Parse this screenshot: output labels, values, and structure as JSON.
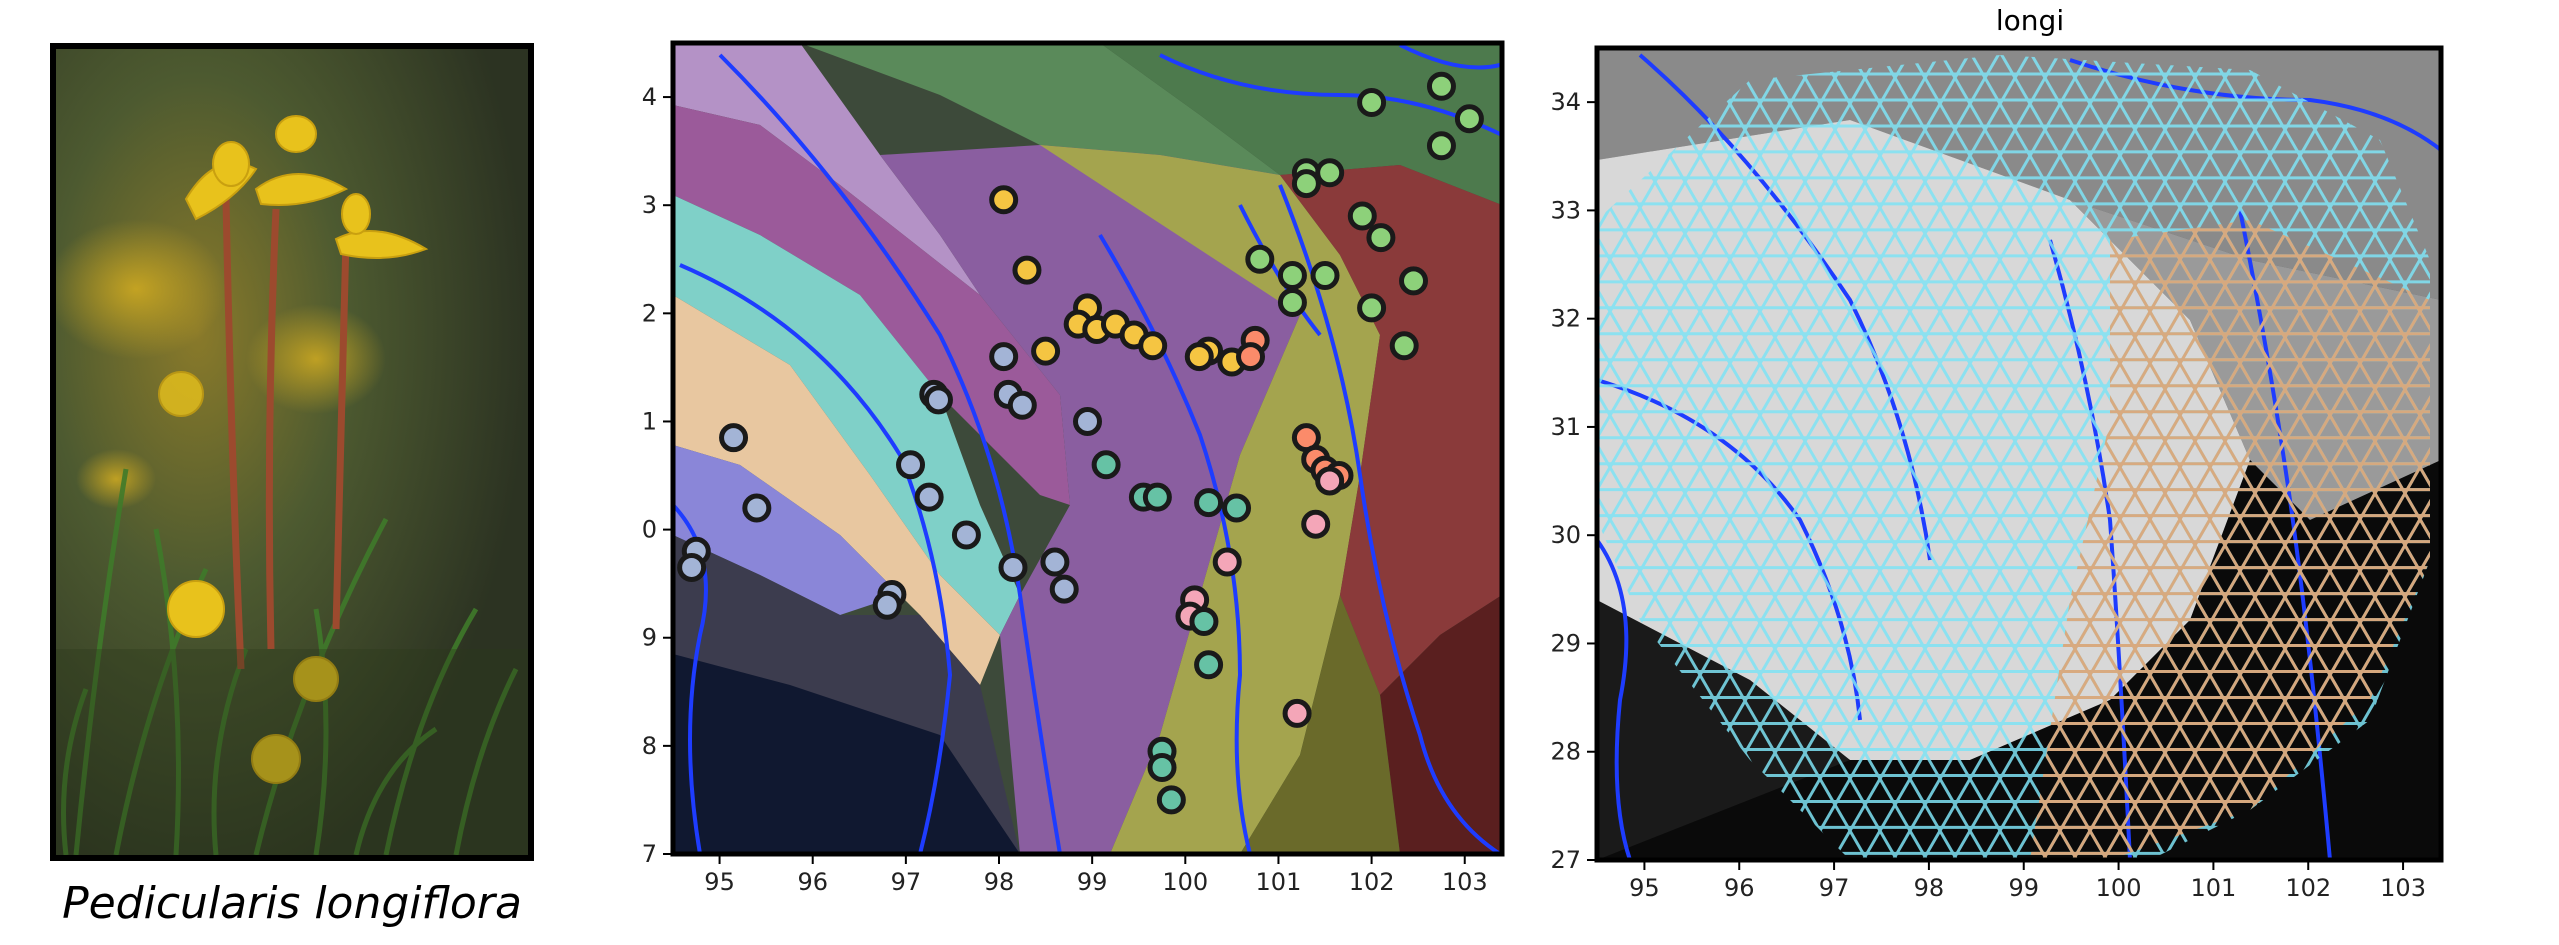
{
  "figure": {
    "photo": {
      "caption": "Pedicularis longiflora",
      "flower_color": "#e8c21c",
      "stem_color": "#9c4a2e",
      "background_color": "#4d5a30"
    },
    "maps": {
      "x_ticks": [
        "95",
        "96",
        "97",
        "98",
        "99",
        "100",
        "101",
        "102",
        "103"
      ],
      "y_ticks": [
        "34",
        "33",
        "32",
        "31",
        "30",
        "29",
        "28",
        "27"
      ],
      "x_range": [
        94.5,
        103.4
      ],
      "y_range": [
        27,
        34.5
      ]
    },
    "occurrence_map": {
      "points": [
        {
          "lon": 102.75,
          "lat": 34.1,
          "color": "#8dd17a"
        },
        {
          "lon": 102.0,
          "lat": 33.95,
          "color": "#8dd17a"
        },
        {
          "lon": 103.05,
          "lat": 33.8,
          "color": "#8dd17a"
        },
        {
          "lon": 102.75,
          "lat": 33.55,
          "color": "#8dd17a"
        },
        {
          "lon": 101.3,
          "lat": 33.3,
          "color": "#8dd17a"
        },
        {
          "lon": 101.55,
          "lat": 33.3,
          "color": "#8dd17a"
        },
        {
          "lon": 101.3,
          "lat": 33.2,
          "color": "#8dd17a"
        },
        {
          "lon": 101.9,
          "lat": 32.9,
          "color": "#8dd17a"
        },
        {
          "lon": 102.1,
          "lat": 32.7,
          "color": "#8dd17a"
        },
        {
          "lon": 100.8,
          "lat": 32.5,
          "color": "#8dd17a"
        },
        {
          "lon": 101.15,
          "lat": 32.35,
          "color": "#8dd17a"
        },
        {
          "lon": 101.5,
          "lat": 32.35,
          "color": "#8dd17a"
        },
        {
          "lon": 101.15,
          "lat": 32.1,
          "color": "#8dd17a"
        },
        {
          "lon": 102.0,
          "lat": 32.05,
          "color": "#8dd17a"
        },
        {
          "lon": 102.45,
          "lat": 32.3,
          "color": "#8dd17a"
        },
        {
          "lon": 102.35,
          "lat": 31.7,
          "color": "#8dd17a"
        },
        {
          "lon": 98.05,
          "lat": 33.05,
          "color": "#f5c542"
        },
        {
          "lon": 98.3,
          "lat": 32.4,
          "color": "#f5c542"
        },
        {
          "lon": 98.95,
          "lat": 32.05,
          "color": "#f5c542"
        },
        {
          "lon": 98.85,
          "lat": 31.9,
          "color": "#f5c542"
        },
        {
          "lon": 99.05,
          "lat": 31.85,
          "color": "#f5c542"
        },
        {
          "lon": 99.25,
          "lat": 31.9,
          "color": "#f5c542"
        },
        {
          "lon": 99.45,
          "lat": 31.8,
          "color": "#f5c542"
        },
        {
          "lon": 99.65,
          "lat": 31.7,
          "color": "#f5c542"
        },
        {
          "lon": 98.5,
          "lat": 31.65,
          "color": "#f5c542"
        },
        {
          "lon": 100.25,
          "lat": 31.65,
          "color": "#f5c542"
        },
        {
          "lon": 100.5,
          "lat": 31.55,
          "color": "#f5c542"
        },
        {
          "lon": 100.15,
          "lat": 31.6,
          "color": "#f5c542"
        },
        {
          "lon": 100.75,
          "lat": 31.75,
          "color": "#fb8b6a"
        },
        {
          "lon": 100.7,
          "lat": 31.6,
          "color": "#fb8b6a"
        },
        {
          "lon": 101.3,
          "lat": 30.85,
          "color": "#fb8b6a"
        },
        {
          "lon": 101.4,
          "lat": 30.65,
          "color": "#fb8b6a"
        },
        {
          "lon": 101.5,
          "lat": 30.55,
          "color": "#fb8b6a"
        },
        {
          "lon": 101.65,
          "lat": 30.5,
          "color": "#fb8b6a"
        },
        {
          "lon": 101.55,
          "lat": 30.45,
          "color": "#f4a6b8"
        },
        {
          "lon": 101.4,
          "lat": 30.05,
          "color": "#f4a6b8"
        },
        {
          "lon": 100.45,
          "lat": 29.7,
          "color": "#f4a6b8"
        },
        {
          "lon": 100.1,
          "lat": 29.35,
          "color": "#f4a6b8"
        },
        {
          "lon": 100.05,
          "lat": 29.2,
          "color": "#f4a6b8"
        },
        {
          "lon": 101.2,
          "lat": 28.3,
          "color": "#f4a6b8"
        },
        {
          "lon": 99.15,
          "lat": 30.6,
          "color": "#66c2a5"
        },
        {
          "lon": 99.55,
          "lat": 30.3,
          "color": "#66c2a5"
        },
        {
          "lon": 99.7,
          "lat": 30.3,
          "color": "#66c2a5"
        },
        {
          "lon": 100.25,
          "lat": 30.25,
          "color": "#66c2a5"
        },
        {
          "lon": 100.55,
          "lat": 30.2,
          "color": "#66c2a5"
        },
        {
          "lon": 100.2,
          "lat": 29.15,
          "color": "#66c2a5"
        },
        {
          "lon": 100.25,
          "lat": 28.75,
          "color": "#66c2a5"
        },
        {
          "lon": 99.75,
          "lat": 27.95,
          "color": "#66c2a5"
        },
        {
          "lon": 99.75,
          "lat": 27.8,
          "color": "#66c2a5"
        },
        {
          "lon": 99.85,
          "lat": 27.5,
          "color": "#66c2a5"
        },
        {
          "lon": 95.15,
          "lat": 30.85,
          "color": "#a3b4d6"
        },
        {
          "lon": 95.4,
          "lat": 30.2,
          "color": "#a3b4d6"
        },
        {
          "lon": 94.75,
          "lat": 29.8,
          "color": "#a3b4d6"
        },
        {
          "lon": 94.7,
          "lat": 29.65,
          "color": "#a3b4d6"
        },
        {
          "lon": 97.3,
          "lat": 31.25,
          "color": "#a3b4d6"
        },
        {
          "lon": 97.35,
          "lat": 31.2,
          "color": "#a3b4d6"
        },
        {
          "lon": 98.05,
          "lat": 31.6,
          "color": "#a3b4d6"
        },
        {
          "lon": 98.1,
          "lat": 31.25,
          "color": "#a3b4d6"
        },
        {
          "lon": 98.25,
          "lat": 31.15,
          "color": "#a3b4d6"
        },
        {
          "lon": 97.05,
          "lat": 30.6,
          "color": "#a3b4d6"
        },
        {
          "lon": 97.25,
          "lat": 30.3,
          "color": "#a3b4d6"
        },
        {
          "lon": 97.65,
          "lat": 29.95,
          "color": "#a3b4d6"
        },
        {
          "lon": 98.15,
          "lat": 29.65,
          "color": "#a3b4d6"
        },
        {
          "lon": 96.85,
          "lat": 29.4,
          "color": "#a3b4d6"
        },
        {
          "lon": 96.8,
          "lat": 29.3,
          "color": "#a3b4d6"
        },
        {
          "lon": 98.6,
          "lat": 29.7,
          "color": "#a3b4d6"
        },
        {
          "lon": 98.7,
          "lat": 29.45,
          "color": "#a3b4d6"
        },
        {
          "lon": 98.95,
          "lat": 31.0,
          "color": "#a3b4d6"
        }
      ]
    },
    "grid_map": {
      "title": "longi",
      "grid_color": "#7fe3f5",
      "orange_grid_color": "#e0a574"
    }
  }
}
